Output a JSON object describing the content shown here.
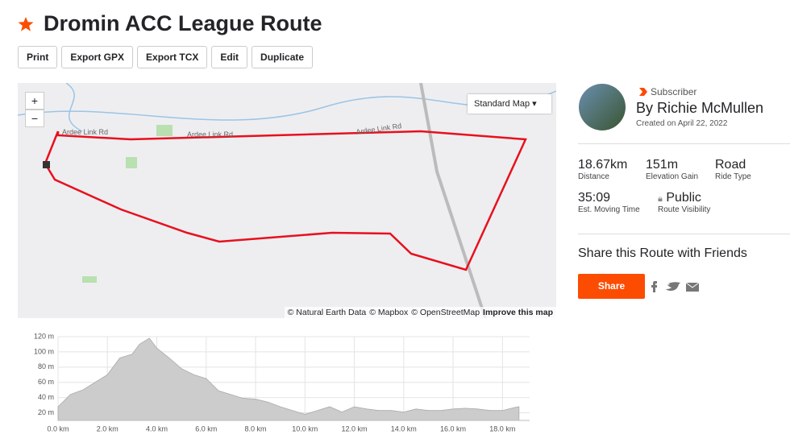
{
  "header": {
    "title": "Dromin ACC League Route",
    "buttons": [
      "Print",
      "Export GPX",
      "Export TCX",
      "Edit",
      "Duplicate"
    ]
  },
  "map": {
    "zoom_in": "+",
    "zoom_out": "−",
    "style_menu": "Standard Map",
    "road_labels": [
      "Ardee Link Rd",
      "Ardee Link Rd",
      "Ardee Link Rd"
    ],
    "attribution": [
      "© Natural Earth Data",
      "© Mapbox",
      "© OpenStreetMap",
      "Improve this map"
    ]
  },
  "athlete": {
    "badge": "Subscriber",
    "name": "By Richie McMullen",
    "created": "Created on April 22, 2022"
  },
  "stats": [
    {
      "value": "18.67km",
      "label": "Distance"
    },
    {
      "value": "151m",
      "label": "Elevation Gain"
    },
    {
      "value": "Road",
      "label": "Ride Type"
    },
    {
      "value": "35:09",
      "label": "Est. Moving Time"
    },
    {
      "value": "Public",
      "label": "Route Visibility"
    }
  ],
  "share": {
    "heading": "Share this Route with Friends",
    "button": "Share"
  },
  "chart_data": {
    "type": "area",
    "color": "#cccccc",
    "x": [
      0,
      0.5,
      1,
      1.5,
      2,
      2.5,
      3,
      3.3,
      3.7,
      4,
      4.5,
      5,
      5.5,
      6,
      6.5,
      7,
      7.5,
      8,
      8.5,
      9,
      9.5,
      10,
      10.5,
      11,
      11.5,
      12,
      12.5,
      13,
      13.5,
      14,
      14.5,
      15,
      15.5,
      16,
      16.5,
      17,
      17.5,
      18,
      18.5,
      18.67
    ],
    "values": [
      28,
      44,
      50,
      60,
      70,
      92,
      97,
      110,
      118,
      105,
      92,
      78,
      70,
      65,
      49,
      44,
      39,
      38,
      34,
      28,
      23,
      18,
      23,
      28,
      21,
      28,
      25,
      23,
      23,
      21,
      25,
      23,
      23,
      25,
      26,
      25,
      23,
      23,
      27,
      28
    ],
    "xlim": [
      0,
      19.1
    ],
    "ylim": [
      10,
      120
    ],
    "xticks": [
      {
        "value": 0,
        "label": "0.0 km"
      },
      {
        "value": 2,
        "label": "2.0 km"
      },
      {
        "value": 4,
        "label": "4.0 km"
      },
      {
        "value": 6,
        "label": "6.0 km"
      },
      {
        "value": 8,
        "label": "8.0 km"
      },
      {
        "value": 10,
        "label": "10.0 km"
      },
      {
        "value": 12,
        "label": "12.0 km"
      },
      {
        "value": 14,
        "label": "14.0 km"
      },
      {
        "value": 16,
        "label": "16.0 km"
      },
      {
        "value": 18,
        "label": "18.0 km"
      }
    ],
    "yticks": [
      {
        "value": 20,
        "label": "20 m"
      },
      {
        "value": 40,
        "label": "40 m"
      },
      {
        "value": 60,
        "label": "60 m"
      },
      {
        "value": 80,
        "label": "80 m"
      },
      {
        "value": 100,
        "label": "100 m"
      },
      {
        "value": 120,
        "label": "120 m"
      }
    ],
    "grid": true
  }
}
